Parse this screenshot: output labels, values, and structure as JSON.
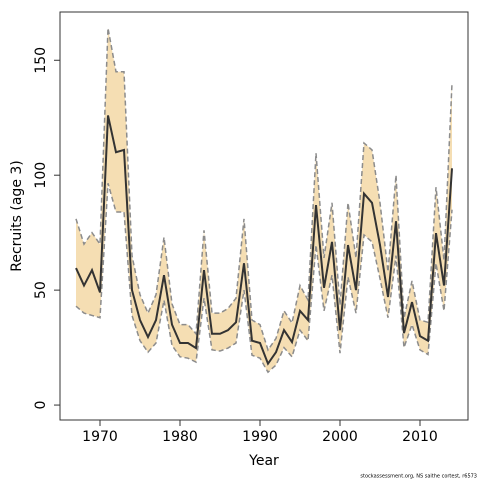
{
  "chart_data": {
    "type": "line",
    "xlabel": "Year",
    "ylabel": "Recruits (age 3)",
    "footnote": "stockassessment.org, NS  saithe  cortest, r6573",
    "x": [
      1967,
      1968,
      1969,
      1970,
      1971,
      1972,
      1973,
      1974,
      1975,
      1976,
      1977,
      1978,
      1979,
      1980,
      1981,
      1982,
      1983,
      1984,
      1985,
      1986,
      1987,
      1988,
      1989,
      1990,
      1991,
      1992,
      1993,
      1994,
      1995,
      1996,
      1997,
      1998,
      1999,
      2000,
      2001,
      2002,
      2003,
      2004,
      2005,
      2006,
      2007,
      2008,
      2009,
      2010,
      2011,
      2012,
      2013,
      2014
    ],
    "values": [
      59.6,
      52,
      58.7,
      49,
      126,
      110,
      111,
      50,
      37,
      29.6,
      37,
      56.5,
      35,
      27,
      27,
      24.8,
      58.7,
      31,
      31,
      32.6,
      36,
      61.7,
      28,
      27,
      18,
      23,
      32.6,
      27.4,
      41,
      37,
      87,
      51,
      71,
      32.6,
      69.6,
      50,
      92,
      88,
      69.6,
      47,
      80,
      31.3,
      44.8,
      30,
      28,
      74.8,
      52,
      103
    ],
    "lower": [
      43,
      40,
      39,
      38,
      96.5,
      84,
      84,
      39,
      28,
      23,
      27,
      45.6,
      26,
      21,
      20.4,
      18.7,
      46.5,
      24,
      23.5,
      24.8,
      27,
      50,
      21.7,
      20.4,
      14.3,
      17.4,
      25,
      21,
      32.6,
      28,
      69.6,
      41,
      56.5,
      22.6,
      55.7,
      40,
      74,
      71,
      55,
      38,
      65,
      25,
      35,
      24,
      22,
      61.7,
      41,
      85
    ],
    "upper": [
      81,
      70,
      75,
      70,
      164,
      145,
      145,
      65,
      48,
      40,
      48,
      73,
      44,
      35,
      35,
      31,
      76,
      40,
      40,
      42,
      46.5,
      81,
      37,
      35,
      24,
      29,
      41,
      35.7,
      52,
      45.7,
      109.6,
      64,
      88,
      43.5,
      88,
      64,
      114,
      111,
      88,
      58,
      100,
      37.8,
      54,
      37,
      36,
      94.8,
      63,
      140
    ],
    "xlim": [
      1965,
      2016
    ],
    "ylim": [
      -6.5,
      171
    ],
    "xticks": [
      1970,
      1980,
      1990,
      2000,
      2010
    ],
    "yticks": [
      0,
      50,
      100,
      150
    ],
    "color": "#333333",
    "band_color": "#f5deb3",
    "bound_color": "#8c8c8c"
  }
}
